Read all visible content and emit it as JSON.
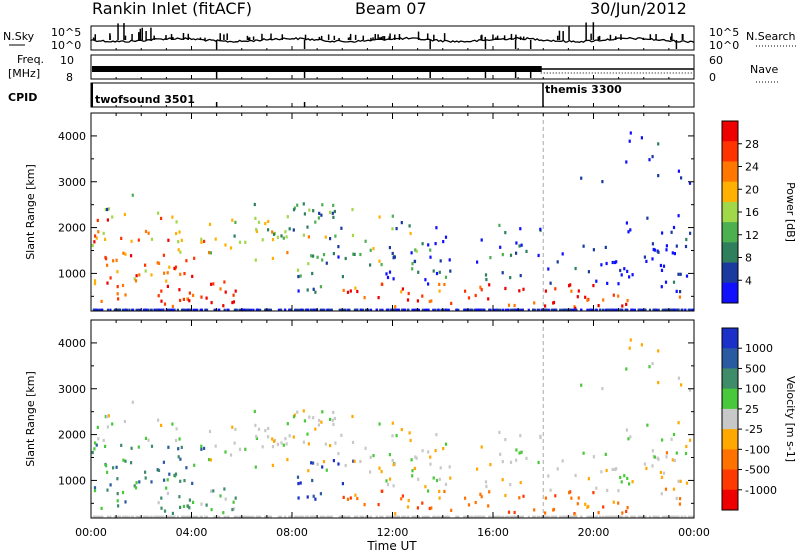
{
  "header": {
    "station": "Rankin Inlet (fitACF)",
    "beam": "Beam 07",
    "date": "30/Jun/2012"
  },
  "noise_panel": {
    "left_label": "N.Sky",
    "right_label": "N.Search",
    "left_ticks": [
      "10^5",
      "10^0"
    ],
    "right_ticks": [
      "10^5",
      "10^0"
    ]
  },
  "freq_panel": {
    "left_label_1": "Freq.",
    "left_label_2": "[MHz]",
    "left_ticks": [
      "10",
      "8"
    ],
    "right_label": "Nave",
    "right_ticks": [
      "60",
      "0"
    ]
  },
  "cpid_panel": {
    "label": "CPID",
    "programs": [
      {
        "name": "twofsound 3501",
        "start_hour": 0
      },
      {
        "name": "themis 3300",
        "start_hour": 18
      }
    ]
  },
  "colors": {
    "power_scale": [
      "#1010ff",
      "#1a3aa0",
      "#2f7f5c",
      "#4caf50",
      "#a0d84a",
      "#ffb000",
      "#ff7700",
      "#ff3300",
      "#ee0000"
    ],
    "velocity_scale": [
      "#1a30c8",
      "#2a5aa0",
      "#3e8c6a",
      "#48c83a",
      "#c8c8c8",
      "#ffa800",
      "#ff7200",
      "#ff3a00",
      "#ee0000"
    ]
  },
  "chart_data": [
    {
      "type": "heatmap",
      "panel": "power",
      "ylabel": "Slant Range [km]",
      "xlabel": "Time UT",
      "xlim": [
        0,
        24
      ],
      "x_tick_labels": [
        "00:00",
        "04:00",
        "08:00",
        "12:00",
        "16:00",
        "20:00",
        "00:00"
      ],
      "ylim": [
        180,
        4500
      ],
      "y_ticks": [
        1000,
        2000,
        3000,
        4000
      ],
      "colorbar_label": "Power [dB]",
      "colorbar_ticks": [
        "4",
        "8",
        "12",
        "16",
        "20",
        "24",
        "28"
      ],
      "colorbar_range": [
        0,
        30
      ]
    },
    {
      "type": "heatmap",
      "panel": "velocity",
      "ylabel": "Slant Range [km]",
      "xlabel": "Time UT",
      "xlim": [
        0,
        24
      ],
      "x_tick_labels": [
        "00:00",
        "04:00",
        "08:00",
        "12:00",
        "16:00",
        "20:00",
        "00:00"
      ],
      "ylim": [
        180,
        4500
      ],
      "y_ticks": [
        1000,
        2000,
        3000,
        4000
      ],
      "colorbar_label": "Velocity [m s-1]",
      "colorbar_ticks": [
        "1000",
        "500",
        "100",
        "25",
        "-25",
        "-100",
        "-500",
        "-1000"
      ]
    }
  ],
  "axis": {
    "xlabel": "Time UT"
  }
}
